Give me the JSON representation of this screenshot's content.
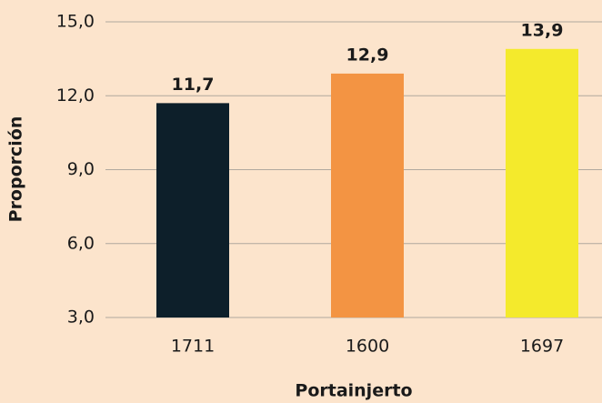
{
  "chart_data": {
    "type": "bar",
    "x_label": "Portainjerto",
    "y_label": "Proporción",
    "categories": [
      "1711",
      "1600",
      "1697"
    ],
    "values": [
      11.7,
      12.9,
      13.9
    ],
    "value_labels": [
      "11,7",
      "12,9",
      "13,9"
    ],
    "colors": [
      "#0d1f2a",
      "#f39443",
      "#f4ea2c"
    ],
    "ylim": [
      3,
      15
    ],
    "yticks": [
      {
        "value": 3,
        "label": "3,0"
      },
      {
        "value": 6,
        "label": "6,0"
      },
      {
        "value": 9,
        "label": "9,0"
      },
      {
        "value": 12,
        "label": "12,0"
      },
      {
        "value": 15,
        "label": "15,0"
      }
    ],
    "grid": true
  }
}
